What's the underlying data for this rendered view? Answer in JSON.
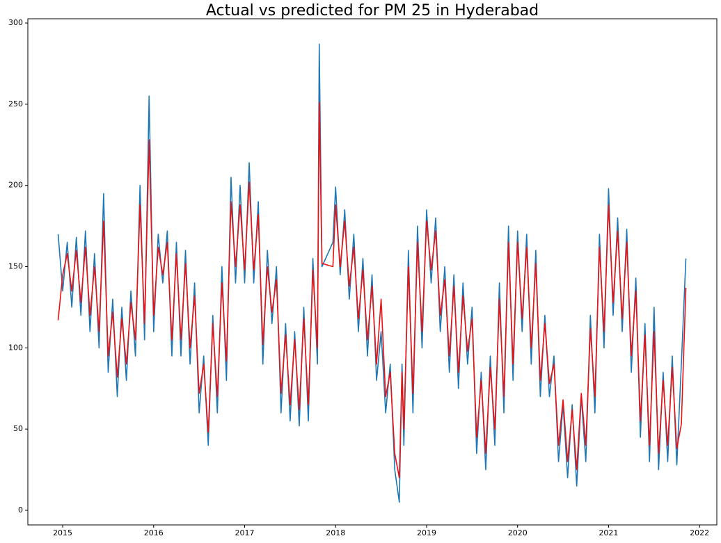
{
  "chart_data": {
    "type": "line",
    "title": "Actual vs predicted for PM 25 in Hyderabad",
    "x": [
      2014.95,
      2015.0,
      2015.05,
      2015.1,
      2015.15,
      2015.2,
      2015.25,
      2015.3,
      2015.35,
      2015.4,
      2015.45,
      2015.5,
      2015.55,
      2015.6,
      2015.65,
      2015.7,
      2015.75,
      2015.8,
      2015.85,
      2015.9,
      2015.95,
      2016.0,
      2016.05,
      2016.1,
      2016.15,
      2016.2,
      2016.25,
      2016.3,
      2016.35,
      2016.4,
      2016.45,
      2016.5,
      2016.55,
      2016.6,
      2016.65,
      2016.7,
      2016.75,
      2016.8,
      2016.85,
      2016.9,
      2016.95,
      2017.0,
      2017.05,
      2017.1,
      2017.15,
      2017.2,
      2017.25,
      2017.3,
      2017.35,
      2017.4,
      2017.45,
      2017.5,
      2017.55,
      2017.6,
      2017.65,
      2017.7,
      2017.75,
      2017.8,
      2017.82,
      2017.85,
      2017.97,
      2018.0,
      2018.05,
      2018.1,
      2018.15,
      2018.2,
      2018.25,
      2018.3,
      2018.35,
      2018.4,
      2018.45,
      2018.5,
      2018.55,
      2018.6,
      2018.65,
      2018.7,
      2018.73,
      2018.75,
      2018.8,
      2018.85,
      2018.9,
      2018.95,
      2019.0,
      2019.05,
      2019.1,
      2019.15,
      2019.2,
      2019.25,
      2019.3,
      2019.35,
      2019.4,
      2019.45,
      2019.5,
      2019.55,
      2019.6,
      2019.65,
      2019.7,
      2019.75,
      2019.8,
      2019.85,
      2019.9,
      2019.95,
      2020.0,
      2020.05,
      2020.1,
      2020.15,
      2020.2,
      2020.25,
      2020.3,
      2020.35,
      2020.4,
      2020.45,
      2020.5,
      2020.55,
      2020.6,
      2020.65,
      2020.7,
      2020.75,
      2020.8,
      2020.85,
      2020.9,
      2020.95,
      2021.0,
      2021.05,
      2021.1,
      2021.15,
      2021.2,
      2021.25,
      2021.3,
      2021.35,
      2021.4,
      2021.45,
      2021.5,
      2021.55,
      2021.6,
      2021.65,
      2021.7,
      2021.75,
      2021.8,
      2021.85
    ],
    "series": [
      {
        "color": "#1f77b4",
        "values": [
          170,
          135,
          165,
          125,
          168,
          120,
          172,
          110,
          158,
          100,
          195,
          85,
          130,
          70,
          125,
          80,
          135,
          95,
          200,
          105,
          255,
          110,
          170,
          140,
          172,
          95,
          165,
          95,
          160,
          90,
          140,
          60,
          95,
          40,
          120,
          60,
          150,
          80,
          205,
          140,
          200,
          140,
          214,
          140,
          190,
          90,
          160,
          115,
          150,
          60,
          115,
          55,
          110,
          52,
          125,
          55,
          155,
          90,
          287,
          150,
          165,
          199,
          145,
          185,
          130,
          170,
          110,
          155,
          95,
          145,
          80,
          110,
          60,
          90,
          25,
          5,
          90,
          40,
          160,
          60,
          175,
          100,
          185,
          140,
          180,
          110,
          150,
          85,
          145,
          75,
          140,
          90,
          125,
          35,
          85,
          25,
          95,
          40,
          140,
          60,
          175,
          80,
          172,
          110,
          170,
          90,
          160,
          70,
          120,
          70,
          95,
          30,
          65,
          20,
          65,
          15,
          70,
          30,
          120,
          60,
          170,
          100,
          198,
          120,
          180,
          110,
          173,
          85,
          143,
          45,
          115,
          30,
          125,
          25,
          85,
          30,
          95,
          28,
          90,
          155
        ]
      },
      {
        "color": "#ee1111",
        "values": [
          117,
          145,
          158,
          135,
          160,
          128,
          162,
          120,
          150,
          110,
          178,
          95,
          122,
          82,
          118,
          90,
          128,
          105,
          188,
          115,
          228,
          120,
          162,
          145,
          165,
          105,
          158,
          105,
          152,
          100,
          132,
          72,
          90,
          48,
          115,
          70,
          140,
          92,
          190,
          150,
          188,
          148,
          202,
          148,
          182,
          102,
          150,
          122,
          142,
          72,
          108,
          65,
          105,
          62,
          118,
          65,
          148,
          100,
          251,
          152,
          150,
          188,
          150,
          178,
          138,
          162,
          118,
          148,
          105,
          138,
          90,
          130,
          70,
          85,
          35,
          20,
          85,
          50,
          150,
          72,
          165,
          110,
          178,
          148,
          172,
          120,
          142,
          95,
          138,
          85,
          132,
          98,
          118,
          45,
          80,
          35,
          88,
          50,
          130,
          70,
          165,
          90,
          165,
          118,
          162,
          100,
          152,
          80,
          115,
          78,
          90,
          40,
          68,
          30,
          62,
          25,
          72,
          40,
          112,
          70,
          162,
          110,
          188,
          128,
          172,
          118,
          165,
          95,
          135,
          55,
          108,
          40,
          110,
          35,
          80,
          40,
          88,
          38,
          53,
          137
        ]
      }
    ],
    "xlim": [
      2014.617,
      2022.19
    ],
    "xticks": [
      2015,
      2016,
      2017,
      2018,
      2019,
      2020,
      2021,
      2022
    ],
    "ylim": [
      -9,
      302.6
    ],
    "yticks": [
      0,
      50,
      100,
      150,
      200,
      250,
      300
    ],
    "grid": false
  }
}
